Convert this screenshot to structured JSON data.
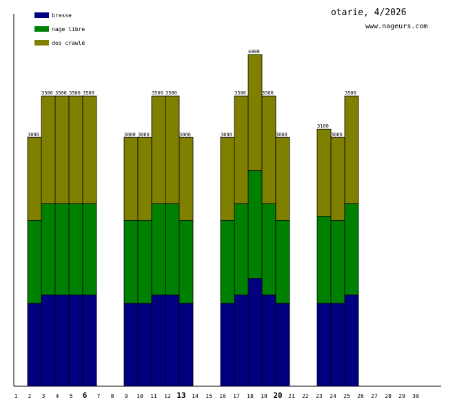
{
  "header": {
    "title": "otarie, 4/2026",
    "site": "www.nageurs.com"
  },
  "chart_data": {
    "type": "bar",
    "stacked": true,
    "ylim": [
      0,
      4500
    ],
    "x": [
      1,
      2,
      3,
      4,
      5,
      6,
      7,
      8,
      9,
      10,
      11,
      12,
      13,
      14,
      15,
      16,
      17,
      18,
      19,
      20,
      21,
      22,
      23,
      24,
      25,
      26,
      27,
      28,
      29,
      30
    ],
    "bold_ticks": [
      6,
      13,
      20
    ],
    "totals": [
      null,
      3000,
      3500,
      3500,
      3500,
      3500,
      null,
      null,
      3000,
      3000,
      3500,
      3500,
      3000,
      null,
      null,
      3000,
      3500,
      4000,
      3500,
      3000,
      null,
      null,
      3100,
      3000,
      3500,
      null,
      null,
      null,
      null,
      null
    ],
    "series": [
      {
        "name": "brasse",
        "color": "#000080",
        "values": [
          0,
          1000,
          1100,
          1100,
          1100,
          1100,
          0,
          0,
          1000,
          1000,
          1100,
          1100,
          1000,
          0,
          0,
          1000,
          1100,
          1300,
          1100,
          1000,
          0,
          0,
          1000,
          1000,
          1100,
          0,
          0,
          0,
          0,
          0
        ]
      },
      {
        "name": "nage libre",
        "color": "#008000",
        "values": [
          0,
          1000,
          1100,
          1100,
          1100,
          1100,
          0,
          0,
          1000,
          1000,
          1100,
          1100,
          1000,
          0,
          0,
          1000,
          1100,
          1300,
          1100,
          1000,
          0,
          0,
          1050,
          1000,
          1100,
          0,
          0,
          0,
          0,
          0
        ]
      },
      {
        "name": "dos crawlé",
        "color": "#808000",
        "values": [
          0,
          1000,
          1300,
          1300,
          1300,
          1300,
          0,
          0,
          1000,
          1000,
          1300,
          1300,
          1000,
          0,
          0,
          1000,
          1300,
          1400,
          1300,
          1000,
          0,
          0,
          1050,
          1000,
          1300,
          0,
          0,
          0,
          0,
          0
        ]
      }
    ],
    "legend_position": "top-left",
    "grid": false
  }
}
